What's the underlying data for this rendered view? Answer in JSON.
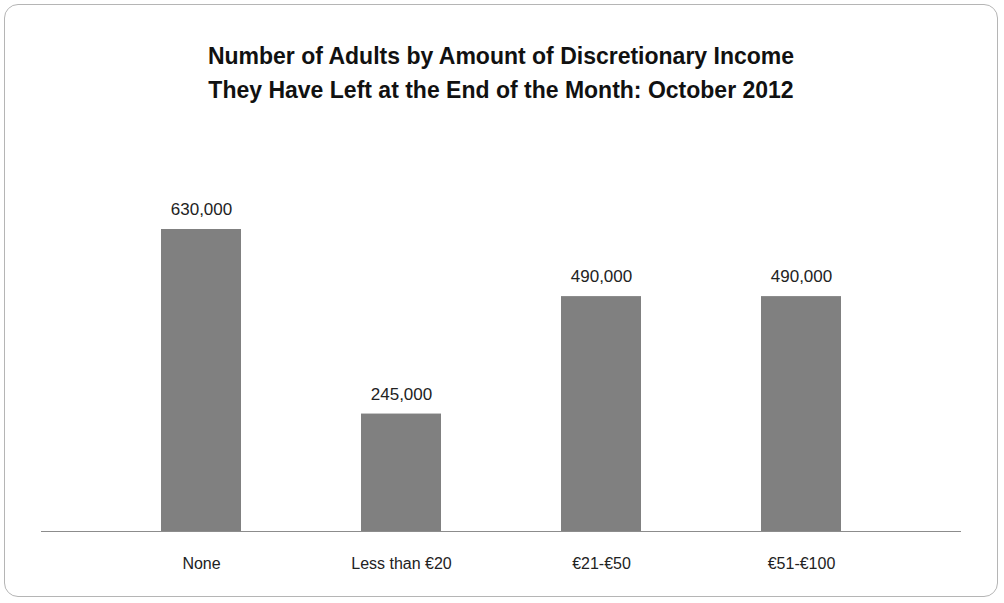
{
  "chart_data": {
    "type": "bar",
    "title": "Number of Adults by Amount of Discretionary Income They Have Left at the End of the Month: October 2012",
    "categories": [
      "None",
      "Less than €20",
      "€21-€50",
      "€51-€100"
    ],
    "values": [
      630000,
      245000,
      490000,
      490000
    ],
    "value_labels": [
      "630,000",
      "245,000",
      "490,000",
      "490,000"
    ],
    "color": "#808080",
    "data_labels": true,
    "tick_labels": "x",
    "grid": false
  }
}
